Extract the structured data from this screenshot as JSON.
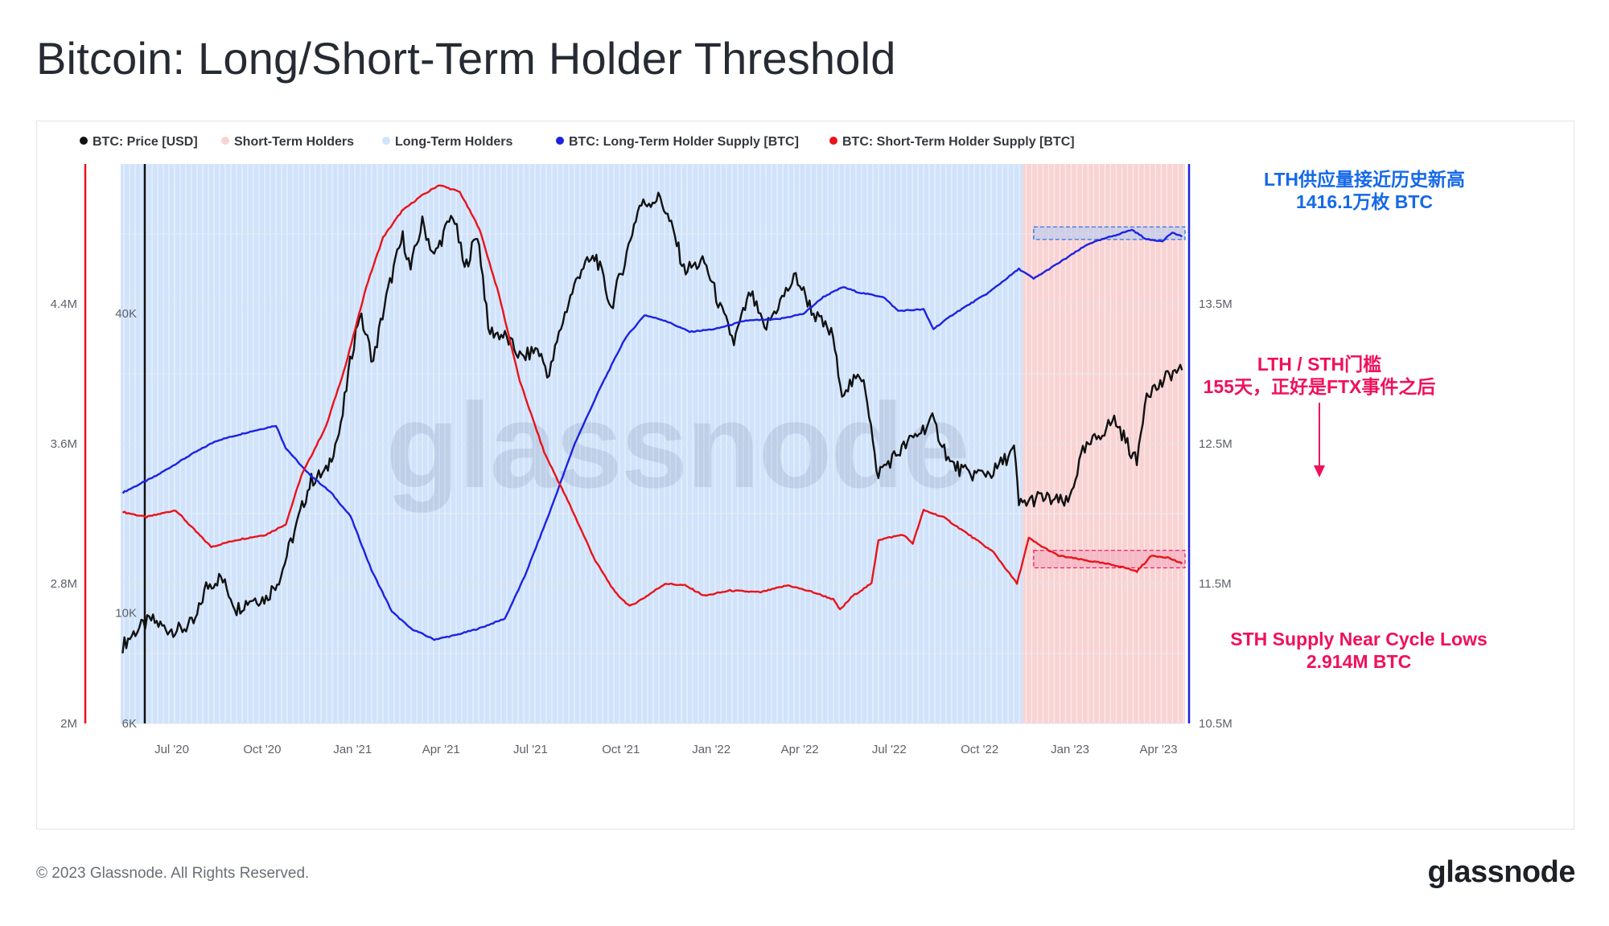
{
  "page": {
    "title": "Bitcoin: Long/Short-Term Holder Threshold",
    "copyright": "© 2023 Glassnode. All Rights Reserved.",
    "logo": "glassnode"
  },
  "chart_data": {
    "type": "line",
    "watermark": "glassnode",
    "legend_position": "top-left",
    "grid": true,
    "colors": {
      "price": "#111111",
      "lth_supply": "#1d22e0",
      "sth_supply": "#e8141b",
      "lth_fill": "#d0e3fb",
      "sth_fill": "#f9d3d3",
      "left_axis": "#e8141b",
      "right_axis": "#1d22e0",
      "price_axis": "#111111",
      "annotation_blue": "#1569e8",
      "annotation_red": "#f0105c"
    },
    "legend": [
      {
        "label": "BTC: Price [USD]",
        "color": "#111111"
      },
      {
        "label": "Short-Term Holders",
        "color": "#f9d3d3"
      },
      {
        "label": "Long-Term Holders",
        "color": "#d0e3fb"
      },
      {
        "label": "BTC: Long-Term Holder Supply [BTC]",
        "color": "#1d22e0"
      },
      {
        "label": "BTC: Short-Term Holder Supply [BTC]",
        "color": "#e8141b"
      }
    ],
    "x_axis": {
      "range": [
        "2020-05-10",
        "2023-04-28"
      ],
      "ticks": [
        {
          "label": "Jul '20",
          "date": "2020-07-01"
        },
        {
          "label": "Oct '20",
          "date": "2020-10-01"
        },
        {
          "label": "Jan '21",
          "date": "2021-01-01"
        },
        {
          "label": "Apr '21",
          "date": "2021-04-01"
        },
        {
          "label": "Jul '21",
          "date": "2021-07-01"
        },
        {
          "label": "Oct '21",
          "date": "2021-10-01"
        },
        {
          "label": "Jan '22",
          "date": "2022-01-01"
        },
        {
          "label": "Apr '22",
          "date": "2022-04-01"
        },
        {
          "label": "Jul '22",
          "date": "2022-07-01"
        },
        {
          "label": "Oct '22",
          "date": "2022-10-01"
        },
        {
          "label": "Jan '23",
          "date": "2023-01-01"
        },
        {
          "label": "Apr '23",
          "date": "2023-04-01"
        }
      ]
    },
    "y_axes": {
      "sth_supply": {
        "ticks": [
          {
            "label": "2M",
            "value": 2000000
          },
          {
            "label": "2.8M",
            "value": 2800000
          },
          {
            "label": "3.6M",
            "value": 3600000
          },
          {
            "label": "4.4M",
            "value": 4400000
          }
        ],
        "range": [
          2000000,
          5200000
        ]
      },
      "price": {
        "scale": "log",
        "ticks": [
          {
            "label": "6K",
            "value": 6000
          },
          {
            "label": "10K",
            "value": 10000
          },
          {
            "label": "40K",
            "value": 40000
          }
        ],
        "range": [
          6000,
          80000
        ]
      },
      "lth_supply": {
        "ticks": [
          {
            "label": "10.5M",
            "value": 10500000
          },
          {
            "label": "11.5M",
            "value": 11500000
          },
          {
            "label": "12.5M",
            "value": 12500000
          },
          {
            "label": "13.5M",
            "value": 13500000
          }
        ],
        "range": [
          10500000,
          14500000
        ]
      }
    },
    "series": [
      {
        "name": "BTC: Price [USD]",
        "axis": "price",
        "points": [
          [
            "2020-05-12",
            8600
          ],
          [
            "2020-05-25",
            9200
          ],
          [
            "2020-06-10",
            9700
          ],
          [
            "2020-06-25",
            9300
          ],
          [
            "2020-07-10",
            9250
          ],
          [
            "2020-07-25",
            9600
          ],
          [
            "2020-08-05",
            11300
          ],
          [
            "2020-08-20",
            11800
          ],
          [
            "2020-09-05",
            10200
          ],
          [
            "2020-09-20",
            10700
          ],
          [
            "2020-10-05",
            10700
          ],
          [
            "2020-10-20",
            11900
          ],
          [
            "2020-11-05",
            15000
          ],
          [
            "2020-11-20",
            18500
          ],
          [
            "2020-12-05",
            19200
          ],
          [
            "2020-12-20",
            23500
          ],
          [
            "2021-01-08",
            40000
          ],
          [
            "2021-01-22",
            32000
          ],
          [
            "2021-02-08",
            46000
          ],
          [
            "2021-02-21",
            57000
          ],
          [
            "2021-03-01",
            49000
          ],
          [
            "2021-03-13",
            61000
          ],
          [
            "2021-03-25",
            52000
          ],
          [
            "2021-04-13",
            63500
          ],
          [
            "2021-04-25",
            49000
          ],
          [
            "2021-05-08",
            58000
          ],
          [
            "2021-05-19",
            37000
          ],
          [
            "2021-06-05",
            36000
          ],
          [
            "2021-06-22",
            32500
          ],
          [
            "2021-07-08",
            34000
          ],
          [
            "2021-07-20",
            30000
          ],
          [
            "2021-08-05",
            40000
          ],
          [
            "2021-08-22",
            49500
          ],
          [
            "2021-09-06",
            52000
          ],
          [
            "2021-09-21",
            41000
          ],
          [
            "2021-10-05",
            51000
          ],
          [
            "2021-10-20",
            66000
          ],
          [
            "2021-11-10",
            68500
          ],
          [
            "2021-11-25",
            57000
          ],
          [
            "2021-12-04",
            49000
          ],
          [
            "2021-12-25",
            50800
          ],
          [
            "2022-01-10",
            41000
          ],
          [
            "2022-01-24",
            35000
          ],
          [
            "2022-02-10",
            44000
          ],
          [
            "2022-02-24",
            37000
          ],
          [
            "2022-03-28",
            47500
          ],
          [
            "2022-04-15",
            40000
          ],
          [
            "2022-05-05",
            36000
          ],
          [
            "2022-05-12",
            28000
          ],
          [
            "2022-06-05",
            30000
          ],
          [
            "2022-06-18",
            19000
          ],
          [
            "2022-07-10",
            21000
          ],
          [
            "2022-08-14",
            24400
          ],
          [
            "2022-09-01",
            20000
          ],
          [
            "2022-09-20",
            19000
          ],
          [
            "2022-10-15",
            19200
          ],
          [
            "2022-11-05",
            21300
          ],
          [
            "2022-11-10",
            16500
          ],
          [
            "2022-12-01",
            17100
          ],
          [
            "2022-12-30",
            16600
          ],
          [
            "2023-01-14",
            21000
          ],
          [
            "2023-02-15",
            24500
          ],
          [
            "2023-03-10",
            20000
          ],
          [
            "2023-03-20",
            28000
          ],
          [
            "2023-04-01",
            28500
          ],
          [
            "2023-04-14",
            30400
          ],
          [
            "2023-04-25",
            30800
          ]
        ]
      },
      {
        "name": "BTC: Long-Term Holder Supply [BTC]",
        "axis": "lth_supply",
        "points": [
          [
            "2020-05-12",
            12150000
          ],
          [
            "2020-06-15",
            12270000
          ],
          [
            "2020-07-20",
            12420000
          ],
          [
            "2020-08-15",
            12520000
          ],
          [
            "2020-09-15",
            12580000
          ],
          [
            "2020-10-15",
            12630000
          ],
          [
            "2020-10-25",
            12470000
          ],
          [
            "2020-11-15",
            12300000
          ],
          [
            "2020-12-10",
            12150000
          ],
          [
            "2020-12-30",
            11980000
          ],
          [
            "2021-01-20",
            11600000
          ],
          [
            "2021-02-10",
            11300000
          ],
          [
            "2021-03-01",
            11180000
          ],
          [
            "2021-03-25",
            11100000
          ],
          [
            "2021-04-15",
            11130000
          ],
          [
            "2021-05-10",
            11180000
          ],
          [
            "2021-06-05",
            11250000
          ],
          [
            "2021-06-25",
            11550000
          ],
          [
            "2021-07-20",
            12000000
          ],
          [
            "2021-08-15",
            12500000
          ],
          [
            "2021-09-10",
            12900000
          ],
          [
            "2021-10-05",
            13250000
          ],
          [
            "2021-10-25",
            13420000
          ],
          [
            "2021-11-15",
            13380000
          ],
          [
            "2021-12-10",
            13300000
          ],
          [
            "2022-01-05",
            13320000
          ],
          [
            "2022-02-05",
            13380000
          ],
          [
            "2022-03-10",
            13390000
          ],
          [
            "2022-04-05",
            13430000
          ],
          [
            "2022-04-25",
            13550000
          ],
          [
            "2022-05-15",
            13620000
          ],
          [
            "2022-06-01",
            13580000
          ],
          [
            "2022-06-25",
            13550000
          ],
          [
            "2022-07-10",
            13450000
          ],
          [
            "2022-08-05",
            13460000
          ],
          [
            "2022-08-15",
            13320000
          ],
          [
            "2022-09-05",
            13430000
          ],
          [
            "2022-10-10",
            13580000
          ],
          [
            "2022-11-10",
            13750000
          ],
          [
            "2022-11-25",
            13680000
          ],
          [
            "2022-12-20",
            13790000
          ],
          [
            "2023-01-20",
            13930000
          ],
          [
            "2023-02-20",
            14000000
          ],
          [
            "2023-03-05",
            14030000
          ],
          [
            "2023-03-20",
            13960000
          ],
          [
            "2023-04-05",
            13950000
          ],
          [
            "2023-04-15",
            14010000
          ],
          [
            "2023-04-25",
            13980000
          ]
        ]
      },
      {
        "name": "BTC: Short-Term Holder Supply [BTC]",
        "axis": "sth_supply",
        "points": [
          [
            "2020-05-12",
            3210000
          ],
          [
            "2020-06-05",
            3180000
          ],
          [
            "2020-07-05",
            3220000
          ],
          [
            "2020-07-20",
            3130000
          ],
          [
            "2020-08-10",
            3010000
          ],
          [
            "2020-09-05",
            3050000
          ],
          [
            "2020-10-05",
            3080000
          ],
          [
            "2020-10-25",
            3140000
          ],
          [
            "2020-11-10",
            3420000
          ],
          [
            "2020-12-05",
            3700000
          ],
          [
            "2020-12-25",
            4050000
          ],
          [
            "2021-01-15",
            4500000
          ],
          [
            "2021-02-01",
            4780000
          ],
          [
            "2021-02-20",
            4930000
          ],
          [
            "2021-03-10",
            5010000
          ],
          [
            "2021-03-30",
            5080000
          ],
          [
            "2021-04-20",
            5040000
          ],
          [
            "2021-05-10",
            4830000
          ],
          [
            "2021-05-30",
            4450000
          ],
          [
            "2021-06-20",
            3960000
          ],
          [
            "2021-07-15",
            3550000
          ],
          [
            "2021-08-10",
            3250000
          ],
          [
            "2021-09-05",
            2930000
          ],
          [
            "2021-09-25",
            2750000
          ],
          [
            "2021-10-10",
            2670000
          ],
          [
            "2021-10-25",
            2720000
          ],
          [
            "2021-11-15",
            2800000
          ],
          [
            "2021-12-05",
            2790000
          ],
          [
            "2021-12-25",
            2730000
          ],
          [
            "2022-01-20",
            2760000
          ],
          [
            "2022-02-20",
            2750000
          ],
          [
            "2022-03-20",
            2790000
          ],
          [
            "2022-04-15",
            2750000
          ],
          [
            "2022-05-05",
            2710000
          ],
          [
            "2022-05-12",
            2650000
          ],
          [
            "2022-05-25",
            2730000
          ],
          [
            "2022-06-13",
            2800000
          ],
          [
            "2022-06-20",
            3050000
          ],
          [
            "2022-07-15",
            3080000
          ],
          [
            "2022-07-25",
            3030000
          ],
          [
            "2022-08-05",
            3220000
          ],
          [
            "2022-08-25",
            3180000
          ],
          [
            "2022-09-20",
            3080000
          ],
          [
            "2022-10-15",
            2980000
          ],
          [
            "2022-11-08",
            2800000
          ],
          [
            "2022-11-20",
            3060000
          ],
          [
            "2022-12-01",
            3020000
          ],
          [
            "2022-12-20",
            2960000
          ],
          [
            "2023-01-20",
            2930000
          ],
          [
            "2023-02-20",
            2900000
          ],
          [
            "2023-03-10",
            2870000
          ],
          [
            "2023-03-25",
            2960000
          ],
          [
            "2023-04-10",
            2950000
          ],
          [
            "2023-04-25",
            2914000
          ]
        ]
      }
    ],
    "regions": [
      {
        "name": "Long-Term Holders",
        "from": "2020-05-10",
        "to": "2022-11-14",
        "color": "#d0e3fb"
      },
      {
        "name": "Short-Term Holders",
        "from": "2022-11-14",
        "to": "2023-04-28",
        "color": "#f9d3d3"
      }
    ],
    "annotations": [
      {
        "lines": [
          "LTH供应量接近历史新高",
          "1416.1万枚 BTC"
        ],
        "color": "#1569e8"
      },
      {
        "lines": [
          "LTH / STH门槛",
          "155天，正好是FTX事件之后"
        ],
        "color": "#f0105c"
      },
      {
        "lines": [
          "STH Supply Near Cycle Lows",
          "2.914M BTC"
        ],
        "color": "#f0105c"
      }
    ]
  }
}
